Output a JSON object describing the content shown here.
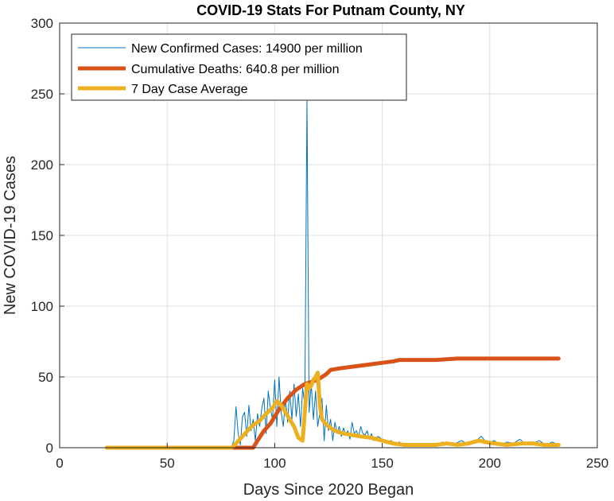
{
  "chart_data": {
    "type": "line",
    "title": "COVID-19 Stats For Putnam County, NY",
    "xlabel": "Days Since 2020 Began",
    "ylabel": "New COVID-19 Cases",
    "xlim": [
      0,
      250
    ],
    "ylim": [
      0,
      300
    ],
    "xticks": [
      0,
      50,
      100,
      150,
      200,
      250
    ],
    "yticks": [
      0,
      50,
      100,
      150,
      200,
      250,
      300
    ],
    "grid": true,
    "legend_position": "top-left",
    "series": [
      {
        "name": "New Confirmed Cases: 14900 per million",
        "color": "#0072BD",
        "x": [
          22,
          60,
          78,
          80,
          81,
          82,
          83,
          84,
          85,
          86,
          87,
          88,
          89,
          90,
          91,
          92,
          93,
          94,
          95,
          96,
          97,
          98,
          99,
          100,
          101,
          102,
          103,
          104,
          105,
          106,
          107,
          108,
          109,
          110,
          111,
          112,
          113,
          114,
          115,
          116,
          117,
          118,
          119,
          120,
          121,
          122,
          123,
          124,
          125,
          126,
          127,
          128,
          129,
          130,
          131,
          132,
          133,
          134,
          135,
          136,
          137,
          138,
          139,
          140,
          141,
          142,
          143,
          144,
          145,
          146,
          148,
          150,
          152,
          154,
          156,
          158,
          160,
          163,
          166,
          169,
          172,
          175,
          178,
          181,
          184,
          187,
          190,
          193,
          196,
          199,
          202,
          205,
          208,
          211,
          214,
          217,
          220,
          223,
          226,
          229,
          232
        ],
        "values": [
          0,
          0,
          0,
          1,
          5,
          29,
          10,
          2,
          22,
          25,
          8,
          30,
          12,
          20,
          5,
          24,
          15,
          28,
          35,
          10,
          40,
          28,
          20,
          48,
          15,
          50,
          25,
          15,
          35,
          18,
          40,
          20,
          45,
          22,
          38,
          15,
          42,
          30,
          245,
          25,
          45,
          20,
          40,
          15,
          25,
          35,
          5,
          30,
          12,
          20,
          5,
          18,
          10,
          15,
          8,
          14,
          9,
          12,
          6,
          18,
          10,
          12,
          8,
          15,
          10,
          9,
          12,
          6,
          10,
          5,
          8,
          6,
          4,
          5,
          3,
          4,
          2,
          3,
          2,
          1,
          3,
          2,
          4,
          2,
          3,
          5,
          2,
          4,
          8,
          3,
          5,
          2,
          4,
          3,
          6,
          2,
          3,
          5,
          2,
          4,
          2
        ]
      },
      {
        "name": "Cumulative Deaths: 640.8 per million",
        "color": "#D95319",
        "x": [
          22,
          80,
          90,
          92,
          95,
          98,
          100,
          102,
          104,
          106,
          108,
          110,
          112,
          114,
          116,
          118,
          120,
          122,
          124,
          126,
          130,
          135,
          140,
          145,
          150,
          155,
          158,
          165,
          175,
          185,
          200,
          215,
          232
        ],
        "values": [
          0,
          0,
          0,
          5,
          12,
          17,
          22,
          27,
          31,
          35,
          38,
          41,
          43,
          45,
          46,
          47,
          48,
          50,
          52,
          55,
          56,
          57,
          58,
          59,
          60,
          61,
          62,
          62,
          62,
          63,
          63,
          63,
          63
        ]
      },
      {
        "name": "7 Day Case Average",
        "color": "#EDB120",
        "x": [
          22,
          50,
          80,
          82,
          85,
          88,
          90,
          93,
          96,
          99,
          101,
          103,
          105,
          107,
          109,
          111,
          113,
          115,
          116,
          117,
          118,
          119,
          120,
          121,
          122,
          123,
          125,
          128,
          132,
          136,
          140,
          145,
          150,
          155,
          160,
          165,
          170,
          175,
          180,
          185,
          190,
          195,
          198,
          202,
          208,
          215,
          220,
          225,
          232
        ],
        "values": [
          0,
          0,
          0,
          3,
          8,
          13,
          16,
          19,
          24,
          28,
          33,
          30,
          25,
          20,
          15,
          7,
          5,
          45,
          42,
          44,
          48,
          50,
          53,
          30,
          20,
          18,
          15,
          12,
          10,
          9,
          8,
          7,
          5,
          3,
          2,
          2,
          2,
          2,
          3,
          2,
          3,
          5,
          4,
          3,
          2,
          3,
          3,
          2,
          2
        ]
      }
    ]
  }
}
